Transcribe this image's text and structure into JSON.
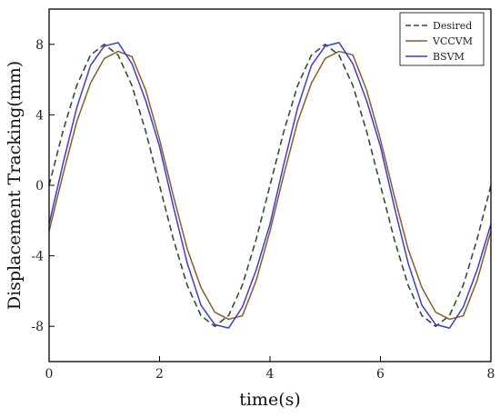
{
  "chart_data": {
    "type": "line",
    "title": "",
    "xlabel": "time(s)",
    "ylabel": "Displacement Tracking(mm)",
    "xlim": [
      0,
      8
    ],
    "ylim": [
      -10,
      10
    ],
    "xticks": [
      "0",
      "2",
      "4",
      "6",
      "8"
    ],
    "yticks": [
      "8",
      "4",
      "0",
      "-4",
      "-8"
    ],
    "grid": false,
    "legend_position": "top-right",
    "series": [
      {
        "name": "Desired",
        "color": "#2f4f3a",
        "style": "dashed",
        "x": [
          0,
          0.25,
          0.5,
          0.75,
          1.0,
          1.25,
          1.5,
          1.75,
          2.0,
          2.25,
          2.5,
          2.75,
          3.0,
          3.25,
          3.5,
          3.75,
          4.0,
          4.25,
          4.5,
          4.75,
          5.0,
          5.25,
          5.5,
          5.75,
          6.0,
          6.25,
          6.5,
          6.75,
          7.0,
          7.25,
          7.5,
          7.75,
          8.0
        ],
        "y": [
          0,
          3.06,
          5.66,
          7.39,
          8.0,
          7.39,
          5.66,
          3.06,
          0,
          -3.06,
          -5.66,
          -7.39,
          -8.0,
          -7.39,
          -5.66,
          -3.06,
          0,
          3.06,
          5.66,
          7.39,
          8.0,
          7.39,
          5.66,
          3.06,
          0,
          -3.06,
          -5.66,
          -7.39,
          -8.0,
          -7.39,
          -5.66,
          -3.06,
          0
        ]
      },
      {
        "name": "VCCVM",
        "color": "#8b5a2b",
        "style": "solid",
        "x": [
          0,
          0.25,
          0.5,
          0.75,
          1.0,
          1.25,
          1.5,
          1.75,
          2.0,
          2.25,
          2.5,
          2.75,
          3.0,
          3.25,
          3.5,
          3.75,
          4.0,
          4.25,
          4.5,
          4.75,
          5.0,
          5.25,
          5.5,
          5.75,
          6.0,
          6.25,
          6.5,
          6.75,
          7.0,
          7.25,
          7.5,
          7.75,
          8.0
        ],
        "y": [
          -2.6,
          0.6,
          3.6,
          5.8,
          7.2,
          7.6,
          7.3,
          5.4,
          2.6,
          -0.6,
          -3.6,
          -5.8,
          -7.2,
          -7.6,
          -7.4,
          -5.4,
          -2.6,
          0.6,
          3.6,
          5.8,
          7.2,
          7.6,
          7.4,
          5.4,
          2.6,
          -0.6,
          -3.6,
          -5.8,
          -7.2,
          -7.6,
          -7.4,
          -5.4,
          -2.6
        ]
      },
      {
        "name": "BSVM",
        "color": "#3b3bd6",
        "style": "solid",
        "x": [
          0,
          0.25,
          0.5,
          0.75,
          1.0,
          1.25,
          1.5,
          1.75,
          2.0,
          2.25,
          2.5,
          2.75,
          3.0,
          3.25,
          3.5,
          3.75,
          4.0,
          4.25,
          4.5,
          4.75,
          5.0,
          5.25,
          5.5,
          5.75,
          6.0,
          6.25,
          6.5,
          6.75,
          7.0,
          7.25,
          7.5,
          7.75,
          8.0
        ],
        "y": [
          -2.2,
          1.2,
          4.4,
          6.8,
          7.9,
          8.1,
          6.9,
          4.8,
          2.2,
          -1.2,
          -4.4,
          -6.8,
          -7.9,
          -8.1,
          -6.9,
          -4.8,
          -2.2,
          1.2,
          4.4,
          6.8,
          7.9,
          8.1,
          6.9,
          4.8,
          2.2,
          -1.2,
          -4.4,
          -6.8,
          -7.9,
          -8.1,
          -6.9,
          -4.8,
          -2.2
        ]
      }
    ]
  }
}
